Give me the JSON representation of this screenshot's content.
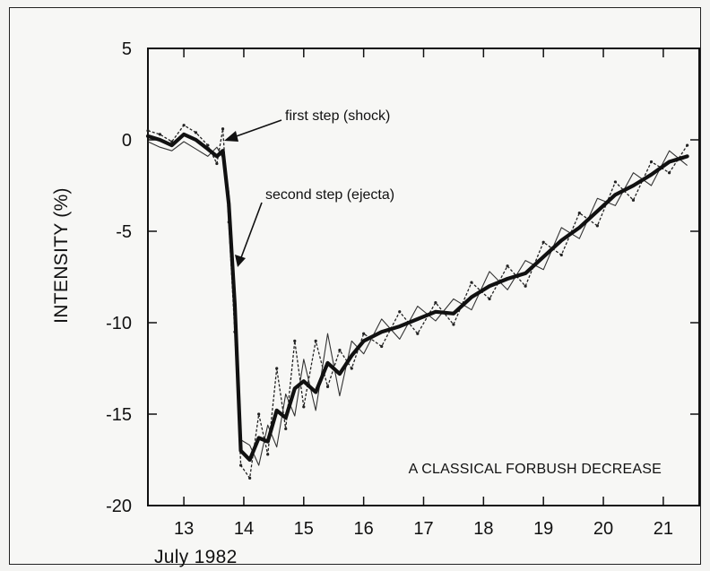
{
  "chart_data": {
    "type": "line",
    "title": "A CLASSICAL FORBUSH DECREASE",
    "xlabel": "July 1982",
    "ylabel": "INTENSITY (%)",
    "xlim": [
      12.4,
      21.6
    ],
    "ylim": [
      -20,
      5
    ],
    "xticks": [
      13,
      14,
      15,
      16,
      17,
      18,
      19,
      20,
      21
    ],
    "yticks": [
      5,
      0,
      -5,
      -10,
      -15,
      -20
    ],
    "grid": false,
    "annotations": [
      {
        "text": "first step (shock)",
        "x": 13.7,
        "y": 0.2
      },
      {
        "text": "second step (ejecta)",
        "x": 13.95,
        "y": -7.5
      }
    ],
    "series": [
      {
        "style": "thick",
        "x": [
          12.4,
          12.6,
          12.8,
          13.0,
          13.2,
          13.4,
          13.55,
          13.65,
          13.75,
          13.85,
          13.95,
          14.1,
          14.25,
          14.4,
          14.55,
          14.7,
          14.85,
          15.0,
          15.2,
          15.4,
          15.6,
          15.8,
          16.0,
          16.3,
          16.6,
          16.9,
          17.2,
          17.5,
          17.8,
          18.1,
          18.4,
          18.7,
          19.0,
          19.3,
          19.6,
          19.9,
          20.2,
          20.5,
          20.8,
          21.1,
          21.4
        ],
        "values": [
          0.2,
          0.0,
          -0.3,
          0.3,
          0.0,
          -0.5,
          -0.9,
          -0.6,
          -3.5,
          -9.0,
          -17.0,
          -17.5,
          -16.3,
          -16.5,
          -14.8,
          -15.2,
          -13.6,
          -13.2,
          -13.8,
          -12.2,
          -12.8,
          -11.8,
          -11.0,
          -10.5,
          -10.2,
          -9.8,
          -9.4,
          -9.5,
          -8.6,
          -8.0,
          -7.6,
          -7.3,
          -6.4,
          -5.5,
          -4.8,
          -3.9,
          -3.0,
          -2.5,
          -1.9,
          -1.2,
          -0.9
        ]
      },
      {
        "style": "dotted",
        "x": [
          12.4,
          12.6,
          12.8,
          13.0,
          13.2,
          13.4,
          13.55,
          13.65,
          13.75,
          13.85,
          13.95,
          14.1,
          14.25,
          14.4,
          14.55,
          14.7,
          14.85,
          15.0,
          15.2,
          15.4,
          15.6,
          15.8,
          16.0,
          16.3,
          16.6,
          16.9,
          17.2,
          17.5,
          17.8,
          18.1,
          18.4,
          18.7,
          19.0,
          19.3,
          19.6,
          19.9,
          20.2,
          20.5,
          20.8,
          21.1,
          21.4
        ],
        "values": [
          0.5,
          0.3,
          -0.1,
          0.8,
          0.4,
          -0.3,
          -1.3,
          0.6,
          -4.5,
          -10.5,
          -17.8,
          -18.5,
          -15.0,
          -17.2,
          -12.5,
          -15.8,
          -11.0,
          -14.6,
          -11.0,
          -13.5,
          -11.5,
          -12.5,
          -10.6,
          -11.3,
          -9.4,
          -10.6,
          -8.9,
          -10.1,
          -7.8,
          -8.7,
          -6.9,
          -8.0,
          -5.6,
          -6.3,
          -4.0,
          -4.7,
          -2.3,
          -3.3,
          -1.2,
          -1.8,
          -0.3
        ]
      },
      {
        "style": "thin",
        "x": [
          12.4,
          12.6,
          12.8,
          13.0,
          13.2,
          13.4,
          13.55,
          13.65,
          13.75,
          13.85,
          13.95,
          14.1,
          14.25,
          14.4,
          14.55,
          14.7,
          14.85,
          15.0,
          15.2,
          15.4,
          15.6,
          15.8,
          16.0,
          16.3,
          16.6,
          16.9,
          17.2,
          17.5,
          17.8,
          18.1,
          18.4,
          18.7,
          19.0,
          19.3,
          19.6,
          19.9,
          20.2,
          20.5,
          20.8,
          21.1,
          21.4
        ],
        "values": [
          -0.1,
          -0.4,
          -0.6,
          -0.1,
          -0.5,
          -0.9,
          -0.4,
          -1.0,
          -2.8,
          -8.0,
          -16.4,
          -16.7,
          -17.8,
          -15.6,
          -16.8,
          -13.9,
          -15.1,
          -12.0,
          -14.8,
          -10.6,
          -14.0,
          -11.0,
          -11.7,
          -9.8,
          -10.9,
          -9.1,
          -9.9,
          -8.7,
          -9.3,
          -7.2,
          -8.2,
          -6.6,
          -7.1,
          -4.8,
          -5.4,
          -3.2,
          -3.6,
          -1.8,
          -2.5,
          -0.6,
          -1.4
        ]
      }
    ]
  }
}
